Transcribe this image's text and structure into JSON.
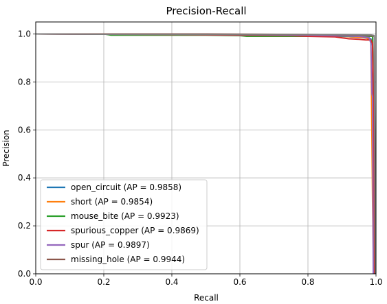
{
  "chart_data": {
    "type": "line",
    "title": "Precision-Recall",
    "xlabel": "Recall",
    "ylabel": "Precision",
    "xlim": [
      0,
      1
    ],
    "ylim": [
      0,
      1.05
    ],
    "xticks": [
      0.0,
      0.2,
      0.4,
      0.6,
      0.8,
      1.0
    ],
    "yticks": [
      0.0,
      0.2,
      0.4,
      0.6,
      0.8,
      1.0
    ],
    "xtick_labels": [
      "0.0",
      "0.2",
      "0.4",
      "0.6",
      "0.8",
      "1.0"
    ],
    "ytick_labels": [
      "0.0",
      "0.2",
      "0.4",
      "0.6",
      "0.8",
      "1.0"
    ],
    "grid": true,
    "legend_position": "lower-left",
    "series": [
      {
        "name": "open_circuit (AP = 0.9858)",
        "color": "#1f77b4",
        "points": [
          [
            0,
            1.0
          ],
          [
            0.3,
            0.998
          ],
          [
            0.6,
            0.996
          ],
          [
            0.8,
            0.994
          ],
          [
            0.9,
            0.99
          ],
          [
            0.96,
            0.985
          ],
          [
            0.985,
            0.98
          ],
          [
            0.99,
            0.95
          ],
          [
            0.995,
            0.5
          ],
          [
            0.998,
            0.0
          ]
        ]
      },
      {
        "name": "short (AP = 0.9854)",
        "color": "#ff7f0e",
        "points": [
          [
            0,
            1.0
          ],
          [
            0.4,
            0.998
          ],
          [
            0.7,
            0.995
          ],
          [
            0.9,
            0.99
          ],
          [
            0.97,
            0.985
          ],
          [
            0.985,
            0.97
          ],
          [
            0.99,
            0.3
          ],
          [
            0.992,
            0.1
          ],
          [
            0.993,
            0.0
          ]
        ]
      },
      {
        "name": "mouse_bite (AP = 0.9923)",
        "color": "#2ca02c",
        "points": [
          [
            0,
            1.0
          ],
          [
            0.2,
            1.0
          ],
          [
            0.22,
            0.995
          ],
          [
            0.5,
            0.995
          ],
          [
            0.6,
            0.993
          ],
          [
            0.62,
            0.99
          ],
          [
            0.9,
            0.99
          ],
          [
            0.97,
            0.99
          ],
          [
            0.99,
            0.99
          ],
          [
            0.994,
            0.5
          ],
          [
            0.996,
            0.0
          ]
        ]
      },
      {
        "name": "spurious_copper (AP = 0.9869)",
        "color": "#d62728",
        "points": [
          [
            0,
            1.0
          ],
          [
            0.3,
            0.998
          ],
          [
            0.6,
            0.995
          ],
          [
            0.75,
            0.993
          ],
          [
            0.8,
            0.99
          ],
          [
            0.88,
            0.988
          ],
          [
            0.92,
            0.98
          ],
          [
            0.95,
            0.978
          ],
          [
            0.97,
            0.975
          ],
          [
            0.985,
            0.975
          ],
          [
            0.99,
            0.96
          ],
          [
            0.994,
            0.5
          ],
          [
            0.996,
            0.0
          ]
        ]
      },
      {
        "name": "spur (AP = 0.9897)",
        "color": "#9467bd",
        "points": [
          [
            0,
            1.0
          ],
          [
            0.5,
            0.998
          ],
          [
            0.8,
            0.995
          ],
          [
            0.95,
            0.99
          ],
          [
            0.98,
            0.985
          ],
          [
            0.985,
            0.96
          ],
          [
            0.988,
            0.75
          ],
          [
            0.99,
            0.74
          ],
          [
            0.992,
            0.0
          ]
        ]
      },
      {
        "name": "missing_hole (AP = 0.9944)",
        "color": "#8c564b",
        "points": [
          [
            0,
            1.0
          ],
          [
            0.5,
            1.0
          ],
          [
            0.8,
            0.998
          ],
          [
            0.95,
            0.995
          ],
          [
            0.985,
            0.993
          ],
          [
            0.995,
            0.99
          ],
          [
            0.997,
            0.5
          ],
          [
            0.998,
            0.0
          ]
        ]
      },
      {
        "name": "",
        "color": "#7f7f7f",
        "points": [
          [
            0,
            1.0
          ],
          [
            0.28,
            0.998
          ],
          [
            0.9,
            0.997
          ],
          [
            0.985,
            0.996
          ],
          [
            0.995,
            0.993
          ],
          [
            0.998,
            0.0
          ]
        ]
      }
    ]
  }
}
